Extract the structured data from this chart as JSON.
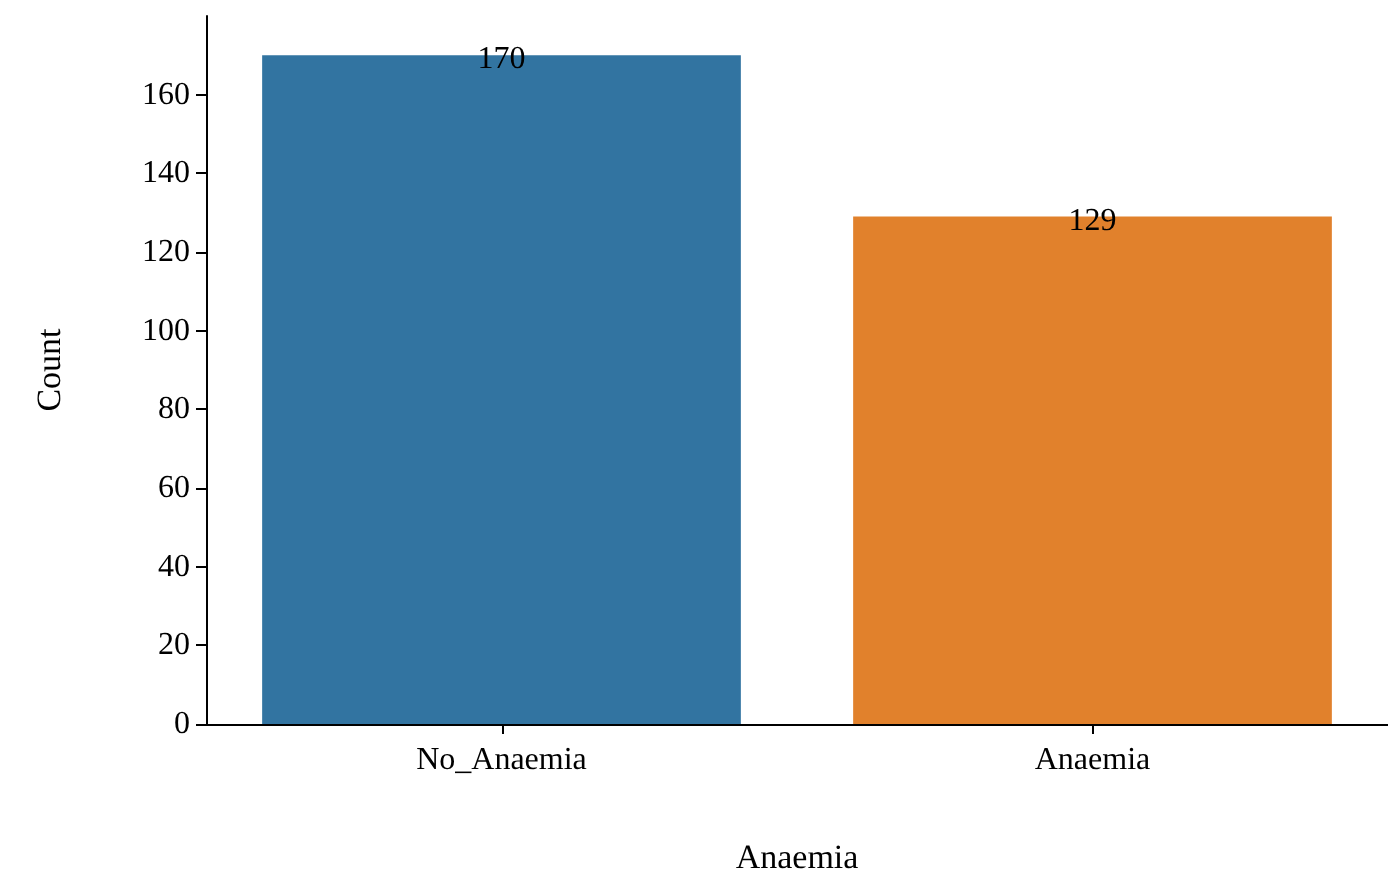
{
  "chart_data": {
    "type": "bar",
    "xlabel": "Anaemia",
    "ylabel": "Count",
    "categories": [
      "No_Anaemia",
      "Anaemia"
    ],
    "values": [
      170,
      129
    ],
    "colors": [
      "#3274a1",
      "#e1812c"
    ],
    "ylim": [
      0,
      180
    ],
    "yticks": [
      0,
      20,
      40,
      60,
      80,
      100,
      120,
      140,
      160
    ],
    "data_labels": true,
    "grid": false
  }
}
